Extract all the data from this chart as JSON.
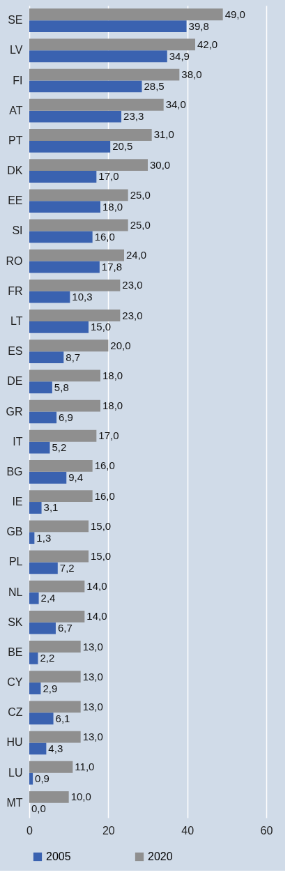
{
  "chart_data": {
    "type": "bar",
    "orientation": "horizontal",
    "categories": [
      "SE",
      "LV",
      "FI",
      "AT",
      "PT",
      "DK",
      "EE",
      "SI",
      "RO",
      "FR",
      "LT",
      "ES",
      "DE",
      "GR",
      "IT",
      "BG",
      "IE",
      "GB",
      "PL",
      "NL",
      "SK",
      "BE",
      "CY",
      "CZ",
      "HU",
      "LU",
      "MT"
    ],
    "series": [
      {
        "name": "2005",
        "color": "#3a62b0",
        "values": [
          39.8,
          34.9,
          28.5,
          23.3,
          20.5,
          17.0,
          18.0,
          16.0,
          17.8,
          10.3,
          15.0,
          8.7,
          5.8,
          6.9,
          5.2,
          9.4,
          3.1,
          1.3,
          7.2,
          2.4,
          6.7,
          2.2,
          2.9,
          6.1,
          4.3,
          0.9,
          0.0
        ],
        "value_labels": [
          "39,8",
          "34,9",
          "28,5",
          "23,3",
          "20,5",
          "17,0",
          "18,0",
          "16,0",
          "17,8",
          "10,3",
          "15,0",
          "8,7",
          "5,8",
          "6,9",
          "5,2",
          "9,4",
          "3,1",
          "1,3",
          "7,2",
          "2,4",
          "6,7",
          "2,2",
          "2,9",
          "6,1",
          "4,3",
          "0,9",
          "0,0"
        ]
      },
      {
        "name": "2020",
        "color": "#8f8f8f",
        "values": [
          49,
          42,
          38,
          34,
          31,
          30,
          25,
          25,
          24,
          23,
          23,
          20,
          18,
          18,
          17,
          16,
          16,
          15,
          15,
          14,
          14,
          13,
          13,
          13,
          13,
          11,
          10
        ],
        "value_labels": [
          "49,0",
          "42,0",
          "38,0",
          "34,0",
          "31,0",
          "30,0",
          "25,0",
          "25,0",
          "24,0",
          "23,0",
          "23,0",
          "20,0",
          "18,0",
          "18,0",
          "17,0",
          "16,0",
          "16,0",
          "15,0",
          "15,0",
          "14,0",
          "14,0",
          "13,0",
          "13,0",
          "13,0",
          "13,0",
          "11,0",
          "10,0"
        ]
      }
    ],
    "xlim": [
      0,
      60
    ],
    "xticks": [
      0,
      20,
      40,
      60
    ],
    "grid": "x",
    "legend": "bottom"
  }
}
